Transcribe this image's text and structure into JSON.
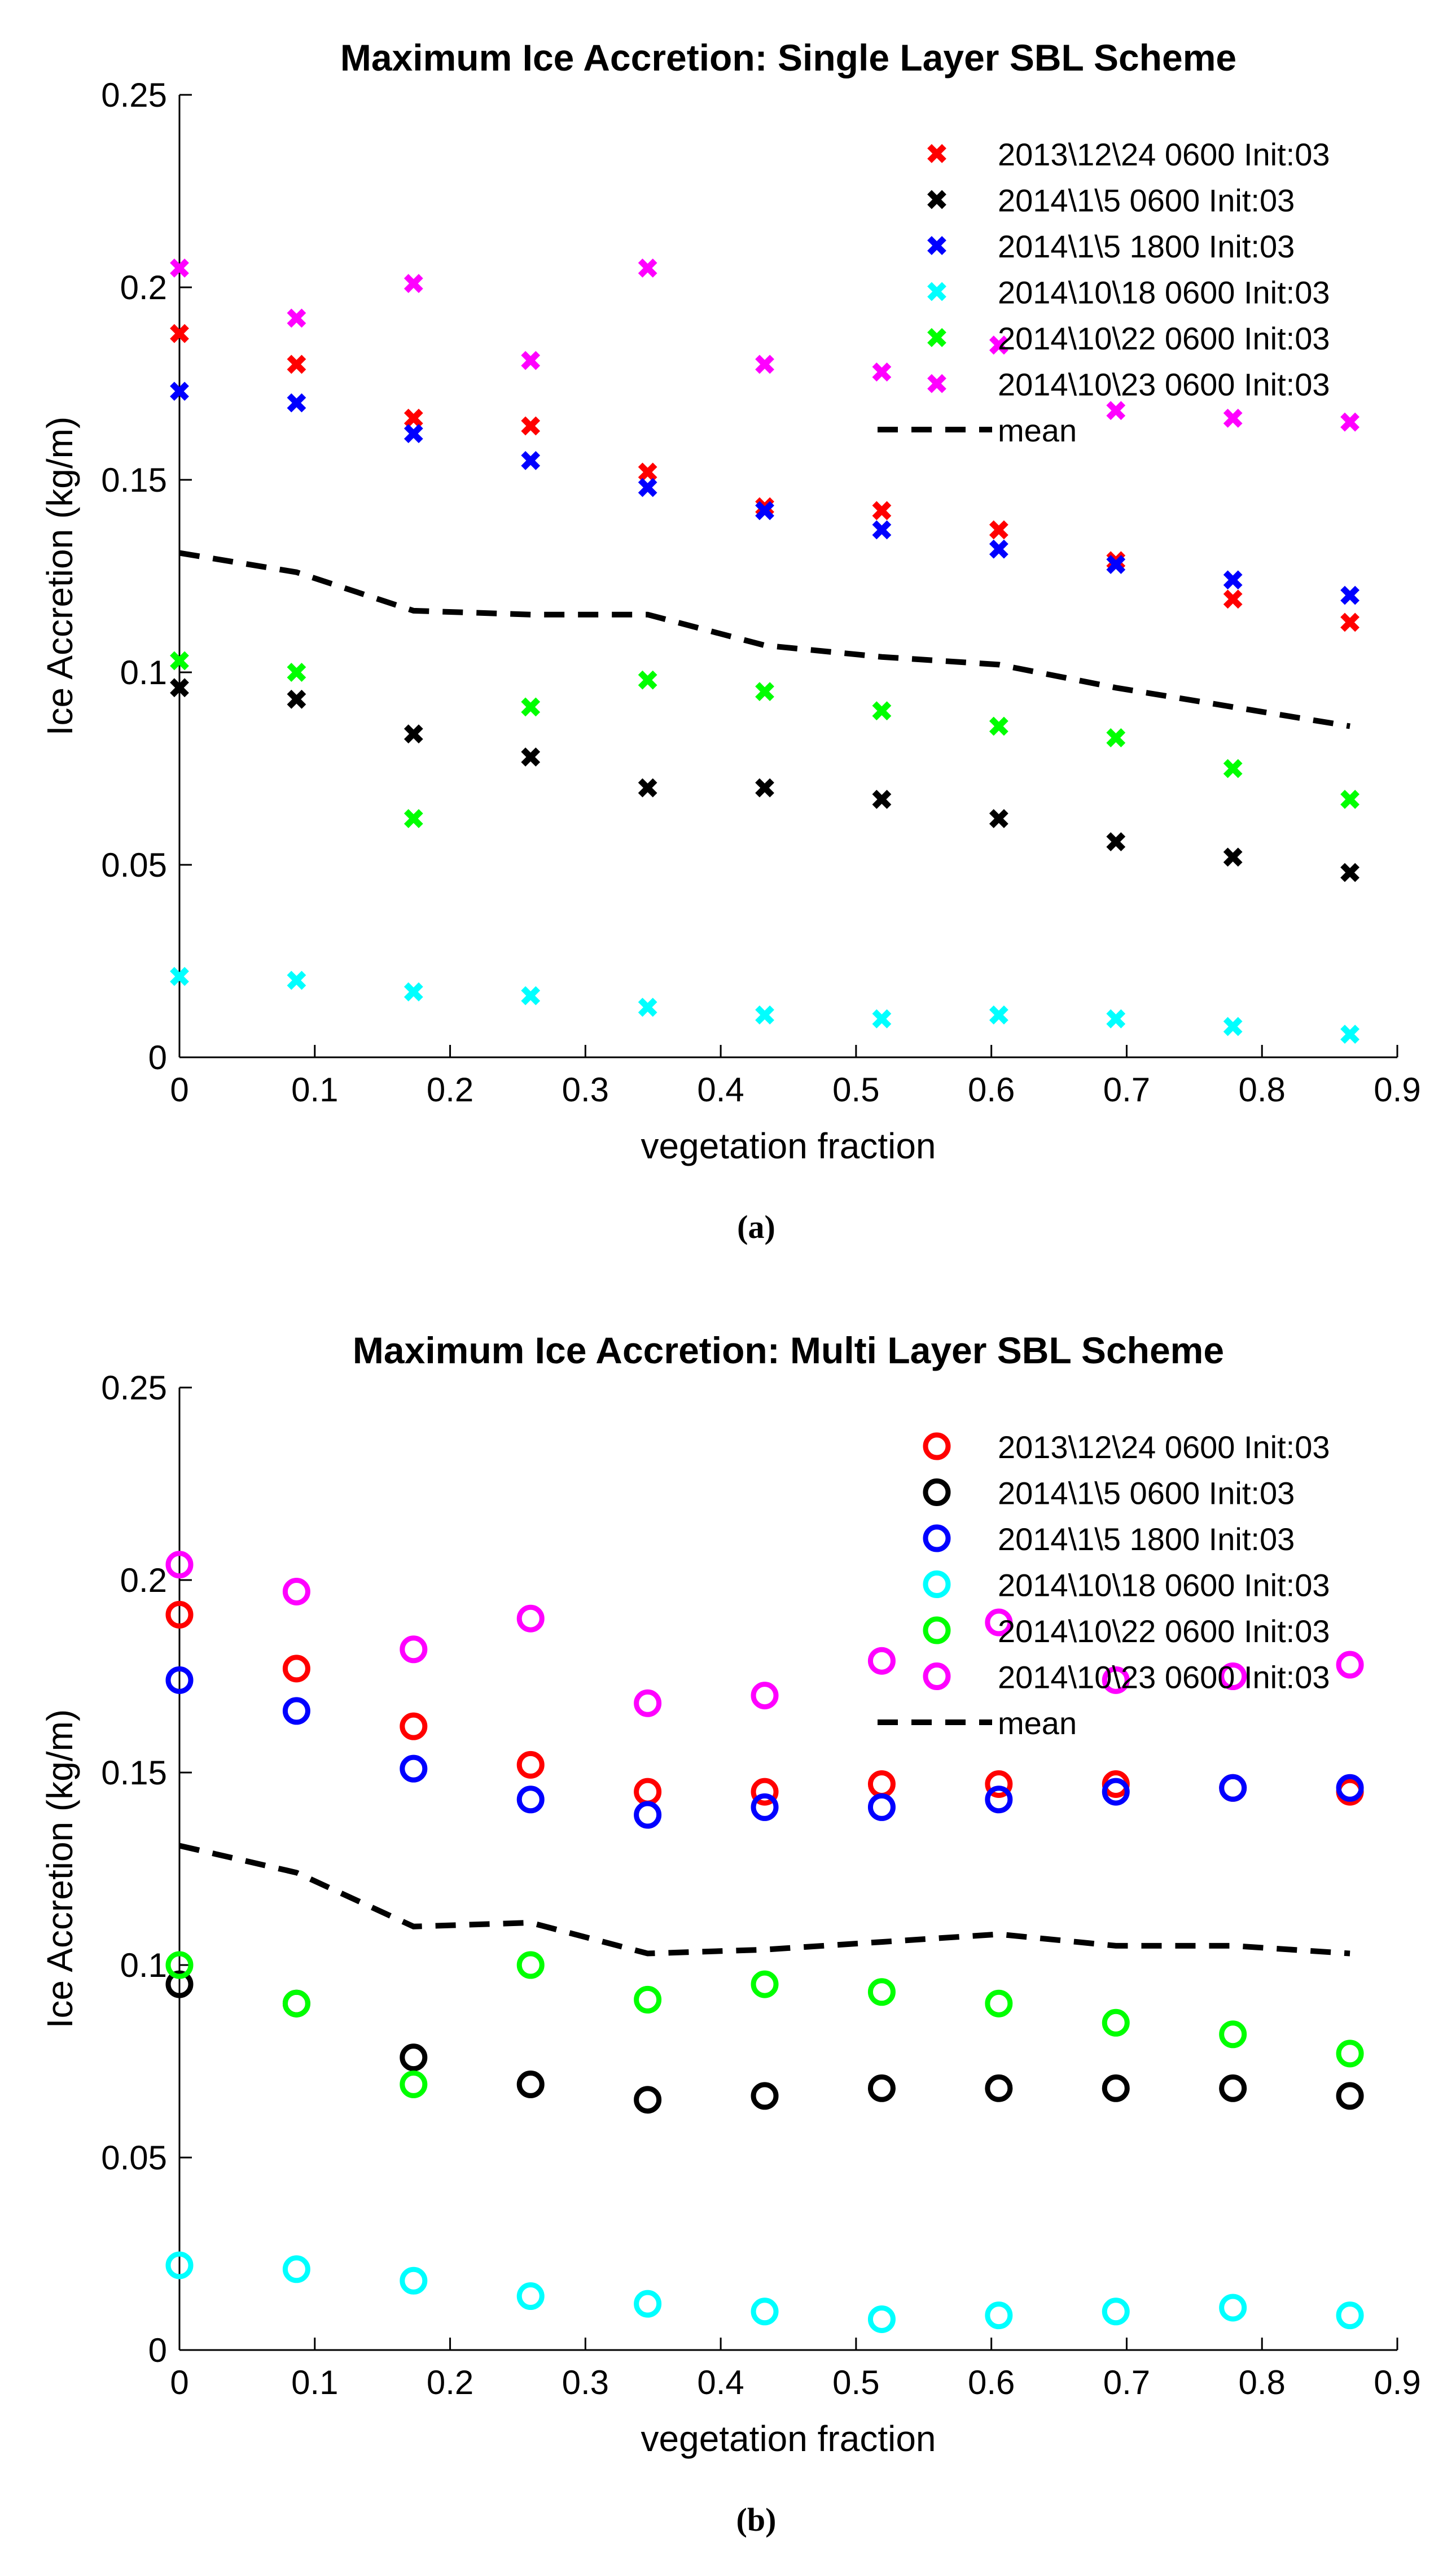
{
  "chart_data": [
    {
      "type": "scatter",
      "title": "Maximum Ice Accretion: Single Layer SBL Scheme",
      "xlabel": "vegetation fraction",
      "ylabel": "Ice Accretion (kg/m)",
      "xlim": [
        0,
        0.9
      ],
      "ylim": [
        0,
        0.25
      ],
      "xticks": [
        "0",
        "0.1",
        "0.2",
        "0.3",
        "0.4",
        "0.5",
        "0.6",
        "0.7",
        "0.8",
        "0.9"
      ],
      "yticks": [
        "0",
        "0.05",
        "0.1",
        "0.15",
        "0.2",
        "0.25"
      ],
      "marker": "x",
      "grid": false,
      "legend_position": "top-right",
      "x": [
        0,
        0.0865,
        0.173,
        0.2595,
        0.346,
        0.4325,
        0.519,
        0.6055,
        0.692,
        0.7785,
        0.865
      ],
      "series": [
        {
          "name": "2013\\12\\24 0600 Init:03",
          "color": "#ff0000",
          "values": [
            0.188,
            0.18,
            0.166,
            0.164,
            0.152,
            0.143,
            0.142,
            0.137,
            0.129,
            0.119,
            0.113
          ]
        },
        {
          "name": "2014\\1\\5 0600 Init:03",
          "color": "#000000",
          "values": [
            0.096,
            0.093,
            0.084,
            0.078,
            0.07,
            0.07,
            0.067,
            0.062,
            0.056,
            0.052,
            0.048
          ]
        },
        {
          "name": "2014\\1\\5 1800 Init:03",
          "color": "#0000ff",
          "values": [
            0.173,
            0.17,
            0.162,
            0.155,
            0.148,
            0.142,
            0.137,
            0.132,
            0.128,
            0.124,
            0.12
          ]
        },
        {
          "name": "2014\\10\\18 0600 Init:03",
          "color": "#00ffff",
          "values": [
            0.021,
            0.02,
            0.017,
            0.016,
            0.013,
            0.011,
            0.01,
            0.011,
            0.01,
            0.008,
            0.006
          ]
        },
        {
          "name": "2014\\10\\22 0600 Init:03",
          "color": "#00ff00",
          "values": [
            0.103,
            0.1,
            0.062,
            0.091,
            0.098,
            0.095,
            0.09,
            0.086,
            0.083,
            0.075,
            0.067
          ]
        },
        {
          "name": "2014\\10\\23 0600 Init:03",
          "color": "#ff00ff",
          "values": [
            0.205,
            0.192,
            0.201,
            0.181,
            0.205,
            0.18,
            0.178,
            0.185,
            0.168,
            0.166,
            0.165
          ]
        }
      ],
      "mean": {
        "name": "mean",
        "color": "#000000",
        "style": "dashed",
        "values": [
          0.131,
          0.126,
          0.116,
          0.115,
          0.115,
          0.107,
          0.104,
          0.102,
          0.096,
          0.091,
          0.086
        ]
      },
      "caption": "(a)"
    },
    {
      "type": "scatter",
      "title": "Maximum Ice Accretion: Multi Layer SBL Scheme",
      "xlabel": "vegetation fraction",
      "ylabel": "Ice Accretion (kg/m)",
      "xlim": [
        0,
        0.9
      ],
      "ylim": [
        0,
        0.25
      ],
      "xticks": [
        "0",
        "0.1",
        "0.2",
        "0.3",
        "0.4",
        "0.5",
        "0.6",
        "0.7",
        "0.8",
        "0.9"
      ],
      "yticks": [
        "0",
        "0.05",
        "0.1",
        "0.15",
        "0.2",
        "0.25"
      ],
      "marker": "o",
      "grid": false,
      "legend_position": "top-right",
      "x": [
        0,
        0.0865,
        0.173,
        0.2595,
        0.346,
        0.4325,
        0.519,
        0.6055,
        0.692,
        0.7785,
        0.865
      ],
      "series": [
        {
          "name": "2013\\12\\24 0600 Init:03",
          "color": "#ff0000",
          "values": [
            0.191,
            0.177,
            0.162,
            0.152,
            0.145,
            0.145,
            0.147,
            0.147,
            0.147,
            0.146,
            0.145
          ]
        },
        {
          "name": "2014\\1\\5 0600 Init:03",
          "color": "#000000",
          "values": [
            0.095,
            0.09,
            0.076,
            0.069,
            0.065,
            0.066,
            0.068,
            0.068,
            0.068,
            0.068,
            0.066
          ]
        },
        {
          "name": "2014\\1\\5 1800 Init:03",
          "color": "#0000ff",
          "values": [
            0.174,
            0.166,
            0.151,
            0.143,
            0.139,
            0.141,
            0.141,
            0.143,
            0.145,
            0.146,
            0.146
          ]
        },
        {
          "name": "2014\\10\\18 0600 Init:03",
          "color": "#00ffff",
          "values": [
            0.022,
            0.021,
            0.018,
            0.014,
            0.012,
            0.01,
            0.008,
            0.009,
            0.01,
            0.011,
            0.009
          ]
        },
        {
          "name": "2014\\10\\22 0600 Init:03",
          "color": "#00ff00",
          "values": [
            0.1,
            0.09,
            0.069,
            0.1,
            0.091,
            0.095,
            0.093,
            0.09,
            0.085,
            0.082,
            0.077
          ]
        },
        {
          "name": "2014\\10\\23 0600 Init:03",
          "color": "#ff00ff",
          "values": [
            0.204,
            0.197,
            0.182,
            0.19,
            0.168,
            0.17,
            0.179,
            0.189,
            0.174,
            0.175,
            0.178
          ]
        }
      ],
      "mean": {
        "name": "mean",
        "color": "#000000",
        "style": "dashed",
        "values": [
          0.131,
          0.124,
          0.11,
          0.111,
          0.103,
          0.104,
          0.106,
          0.108,
          0.105,
          0.105,
          0.103
        ]
      },
      "caption": "(b)"
    }
  ]
}
